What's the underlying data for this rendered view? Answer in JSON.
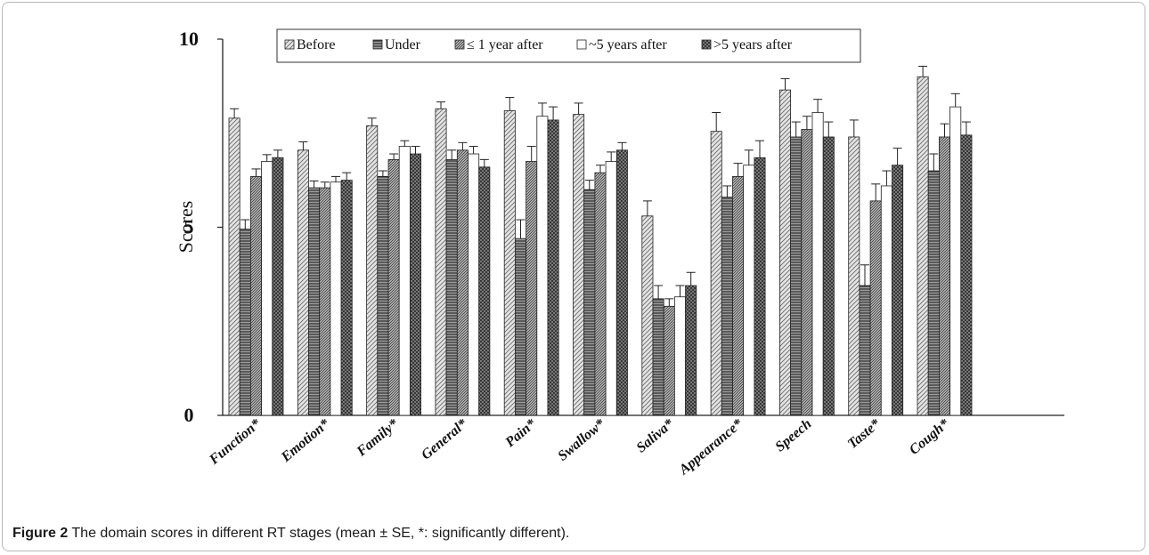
{
  "caption": {
    "label": "Figure 2",
    "text": "The domain scores in different RT stages (mean ± SE, *: significantly different)."
  },
  "chart_data": {
    "type": "bar",
    "ylabel": "Scores",
    "xlabel": "",
    "ylim": [
      0,
      10
    ],
    "yticks": [
      0,
      5,
      10
    ],
    "grid": false,
    "legend_position": "top",
    "categories": [
      "Function*",
      "Emotion*",
      "Family*",
      "General*",
      "Pain*",
      "Swallow*",
      "Saliva*",
      "Appearance*",
      "Speech",
      "Taste*",
      "Cough*"
    ],
    "series": [
      {
        "name": "Before",
        "pattern": "diagonal",
        "values": [
          7.9,
          7.05,
          7.7,
          8.15,
          8.1,
          8.0,
          5.3,
          7.55,
          8.65,
          7.4,
          9.0
        ],
        "errors": [
          0.25,
          0.22,
          0.2,
          0.18,
          0.35,
          0.3,
          0.4,
          0.5,
          0.3,
          0.45,
          0.28
        ]
      },
      {
        "name": "Under",
        "pattern": "horizontal",
        "values": [
          4.95,
          6.05,
          6.35,
          6.8,
          4.7,
          6.0,
          3.1,
          5.8,
          7.4,
          3.45,
          6.5
        ],
        "errors": [
          0.25,
          0.18,
          0.15,
          0.25,
          0.5,
          0.25,
          0.35,
          0.3,
          0.4,
          0.55,
          0.45
        ]
      },
      {
        "name": "≤ 1 year after",
        "pattern": "diagonal-dense",
        "values": [
          6.35,
          6.05,
          6.8,
          7.05,
          6.75,
          6.45,
          2.9,
          6.35,
          7.6,
          5.7,
          7.4
        ],
        "errors": [
          0.2,
          0.15,
          0.15,
          0.2,
          0.4,
          0.2,
          0.2,
          0.35,
          0.35,
          0.45,
          0.35
        ]
      },
      {
        "name": "~5 years after",
        "pattern": "white",
        "values": [
          6.75,
          6.2,
          7.15,
          6.95,
          7.95,
          6.75,
          3.15,
          6.65,
          8.05,
          6.1,
          8.2
        ],
        "errors": [
          0.18,
          0.15,
          0.15,
          0.2,
          0.35,
          0.25,
          0.3,
          0.4,
          0.35,
          0.4,
          0.35
        ]
      },
      {
        "name": ">5 years after",
        "pattern": "crosshatch",
        "values": [
          6.85,
          6.25,
          6.95,
          6.6,
          7.85,
          7.05,
          3.45,
          6.85,
          7.4,
          6.65,
          7.45
        ],
        "errors": [
          0.2,
          0.2,
          0.2,
          0.2,
          0.35,
          0.2,
          0.35,
          0.45,
          0.4,
          0.45,
          0.35
        ]
      }
    ]
  }
}
